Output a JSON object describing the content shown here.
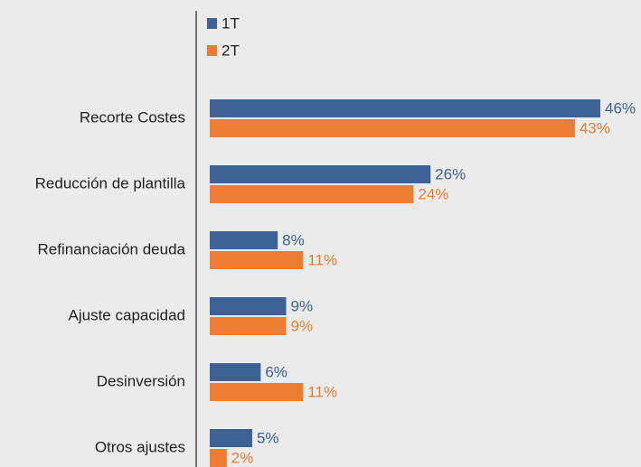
{
  "chart_data": {
    "type": "bar",
    "orientation": "horizontal",
    "categories": [
      "Recorte Costes",
      "Reducción de plantilla",
      "Refinanciación deuda",
      "Ajuste capacidad",
      "Desinversión",
      "Otros ajustes"
    ],
    "series": [
      {
        "name": "1T",
        "color": "#3e6196",
        "values": [
          46,
          26,
          8,
          9,
          6,
          5
        ],
        "value_labels": [
          "46%",
          "26%",
          "8%",
          "9%",
          "6%",
          "5%"
        ]
      },
      {
        "name": "2T",
        "color": "#ed7d31",
        "values": [
          43,
          24,
          11,
          9,
          11,
          2
        ],
        "value_labels": [
          "43%",
          "24%",
          "11%",
          "9%",
          "11%",
          "2%"
        ]
      }
    ]
  }
}
